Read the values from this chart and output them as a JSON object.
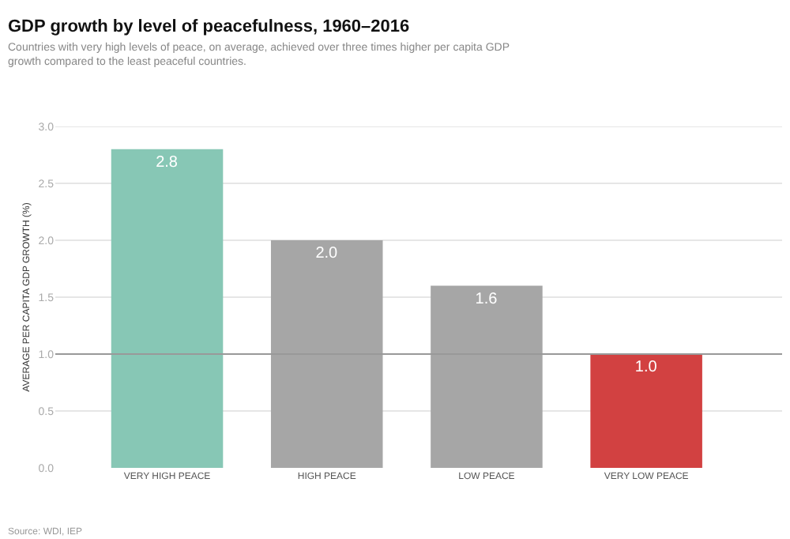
{
  "chart_data": {
    "type": "bar",
    "title": "GDP growth by level of peacefulness, 1960–2016",
    "subtitle": "Countries with very high levels of peace, on average, achieved over three times higher per capita GDP growth compared to the least peaceful countries.",
    "ylabel": "AVERAGE PER CAPITA GDP GROWTH (%)",
    "categories": [
      "VERY HIGH PEACE",
      "HIGH PEACE",
      "LOW PEACE",
      "VERY LOW PEACE"
    ],
    "values": [
      2.8,
      2.0,
      1.6,
      1.0
    ],
    "colors": [
      "#87c7b5",
      "#a6a6a6",
      "#a6a6a6",
      "#d24141"
    ],
    "value_labels": [
      "2.8",
      "2.0",
      "1.6",
      "1.0"
    ],
    "ylim": [
      0,
      3.0
    ],
    "yticks": [
      {
        "value": 0,
        "label": "0.0"
      },
      {
        "value": 0.5,
        "label": "0.5"
      },
      {
        "value": 1,
        "label": "1.0"
      },
      {
        "value": 1.5,
        "label": "1.5"
      },
      {
        "value": 2,
        "label": "2.0"
      },
      {
        "value": 2.5,
        "label": "2.5"
      },
      {
        "value": 3,
        "label": "3.0"
      }
    ],
    "grid": "y",
    "ref_lines": [
      {
        "axis": "y",
        "value": 1.0,
        "color": "#999999"
      }
    ],
    "annotations": [
      "Source: WDI, IEP"
    ]
  }
}
